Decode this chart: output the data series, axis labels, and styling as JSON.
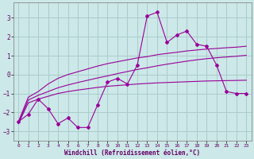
{
  "x": [
    0,
    1,
    2,
    3,
    4,
    5,
    6,
    7,
    8,
    9,
    10,
    11,
    12,
    13,
    14,
    15,
    16,
    17,
    18,
    19,
    20,
    21,
    22,
    23
  ],
  "y_main": [
    -2.5,
    -2.1,
    -1.3,
    -1.8,
    -2.6,
    -2.3,
    -2.8,
    -2.8,
    -1.6,
    -0.4,
    -0.2,
    -0.5,
    0.5,
    3.1,
    3.3,
    1.7,
    2.1,
    2.3,
    1.6,
    1.5,
    0.5,
    -0.9,
    -1.0,
    -1.0
  ],
  "y_upper": [
    -2.5,
    -1.2,
    -0.9,
    -0.5,
    -0.2,
    0.0,
    0.15,
    0.3,
    0.45,
    0.58,
    0.68,
    0.78,
    0.88,
    0.95,
    1.05,
    1.12,
    1.18,
    1.25,
    1.3,
    1.35,
    1.38,
    1.42,
    1.45,
    1.5
  ],
  "y_mid": [
    -2.55,
    -1.35,
    -1.1,
    -0.9,
    -0.7,
    -0.55,
    -0.42,
    -0.3,
    -0.18,
    -0.07,
    0.05,
    0.16,
    0.27,
    0.36,
    0.46,
    0.55,
    0.63,
    0.71,
    0.78,
    0.84,
    0.89,
    0.93,
    0.97,
    1.02
  ],
  "y_lower": [
    -2.6,
    -1.5,
    -1.3,
    -1.15,
    -1.0,
    -0.9,
    -0.82,
    -0.75,
    -0.68,
    -0.62,
    -0.58,
    -0.54,
    -0.5,
    -0.47,
    -0.44,
    -0.42,
    -0.4,
    -0.38,
    -0.36,
    -0.34,
    -0.33,
    -0.32,
    -0.31,
    -0.3
  ],
  "bg_color": "#cce8e8",
  "grid_color": "#aacccc",
  "line_color": "#990099",
  "marker": "D",
  "marker_size": 2,
  "xlabel": "Windchill (Refroidissement éolien,°C)",
  "ylim": [
    -3.5,
    3.8
  ],
  "xlim": [
    -0.5,
    23.5
  ],
  "yticks": [
    -3,
    -2,
    -1,
    0,
    1,
    2,
    3
  ],
  "xticks": [
    0,
    1,
    2,
    3,
    4,
    5,
    6,
    7,
    8,
    9,
    10,
    11,
    12,
    13,
    14,
    15,
    16,
    17,
    18,
    19,
    20,
    21,
    22,
    23
  ]
}
